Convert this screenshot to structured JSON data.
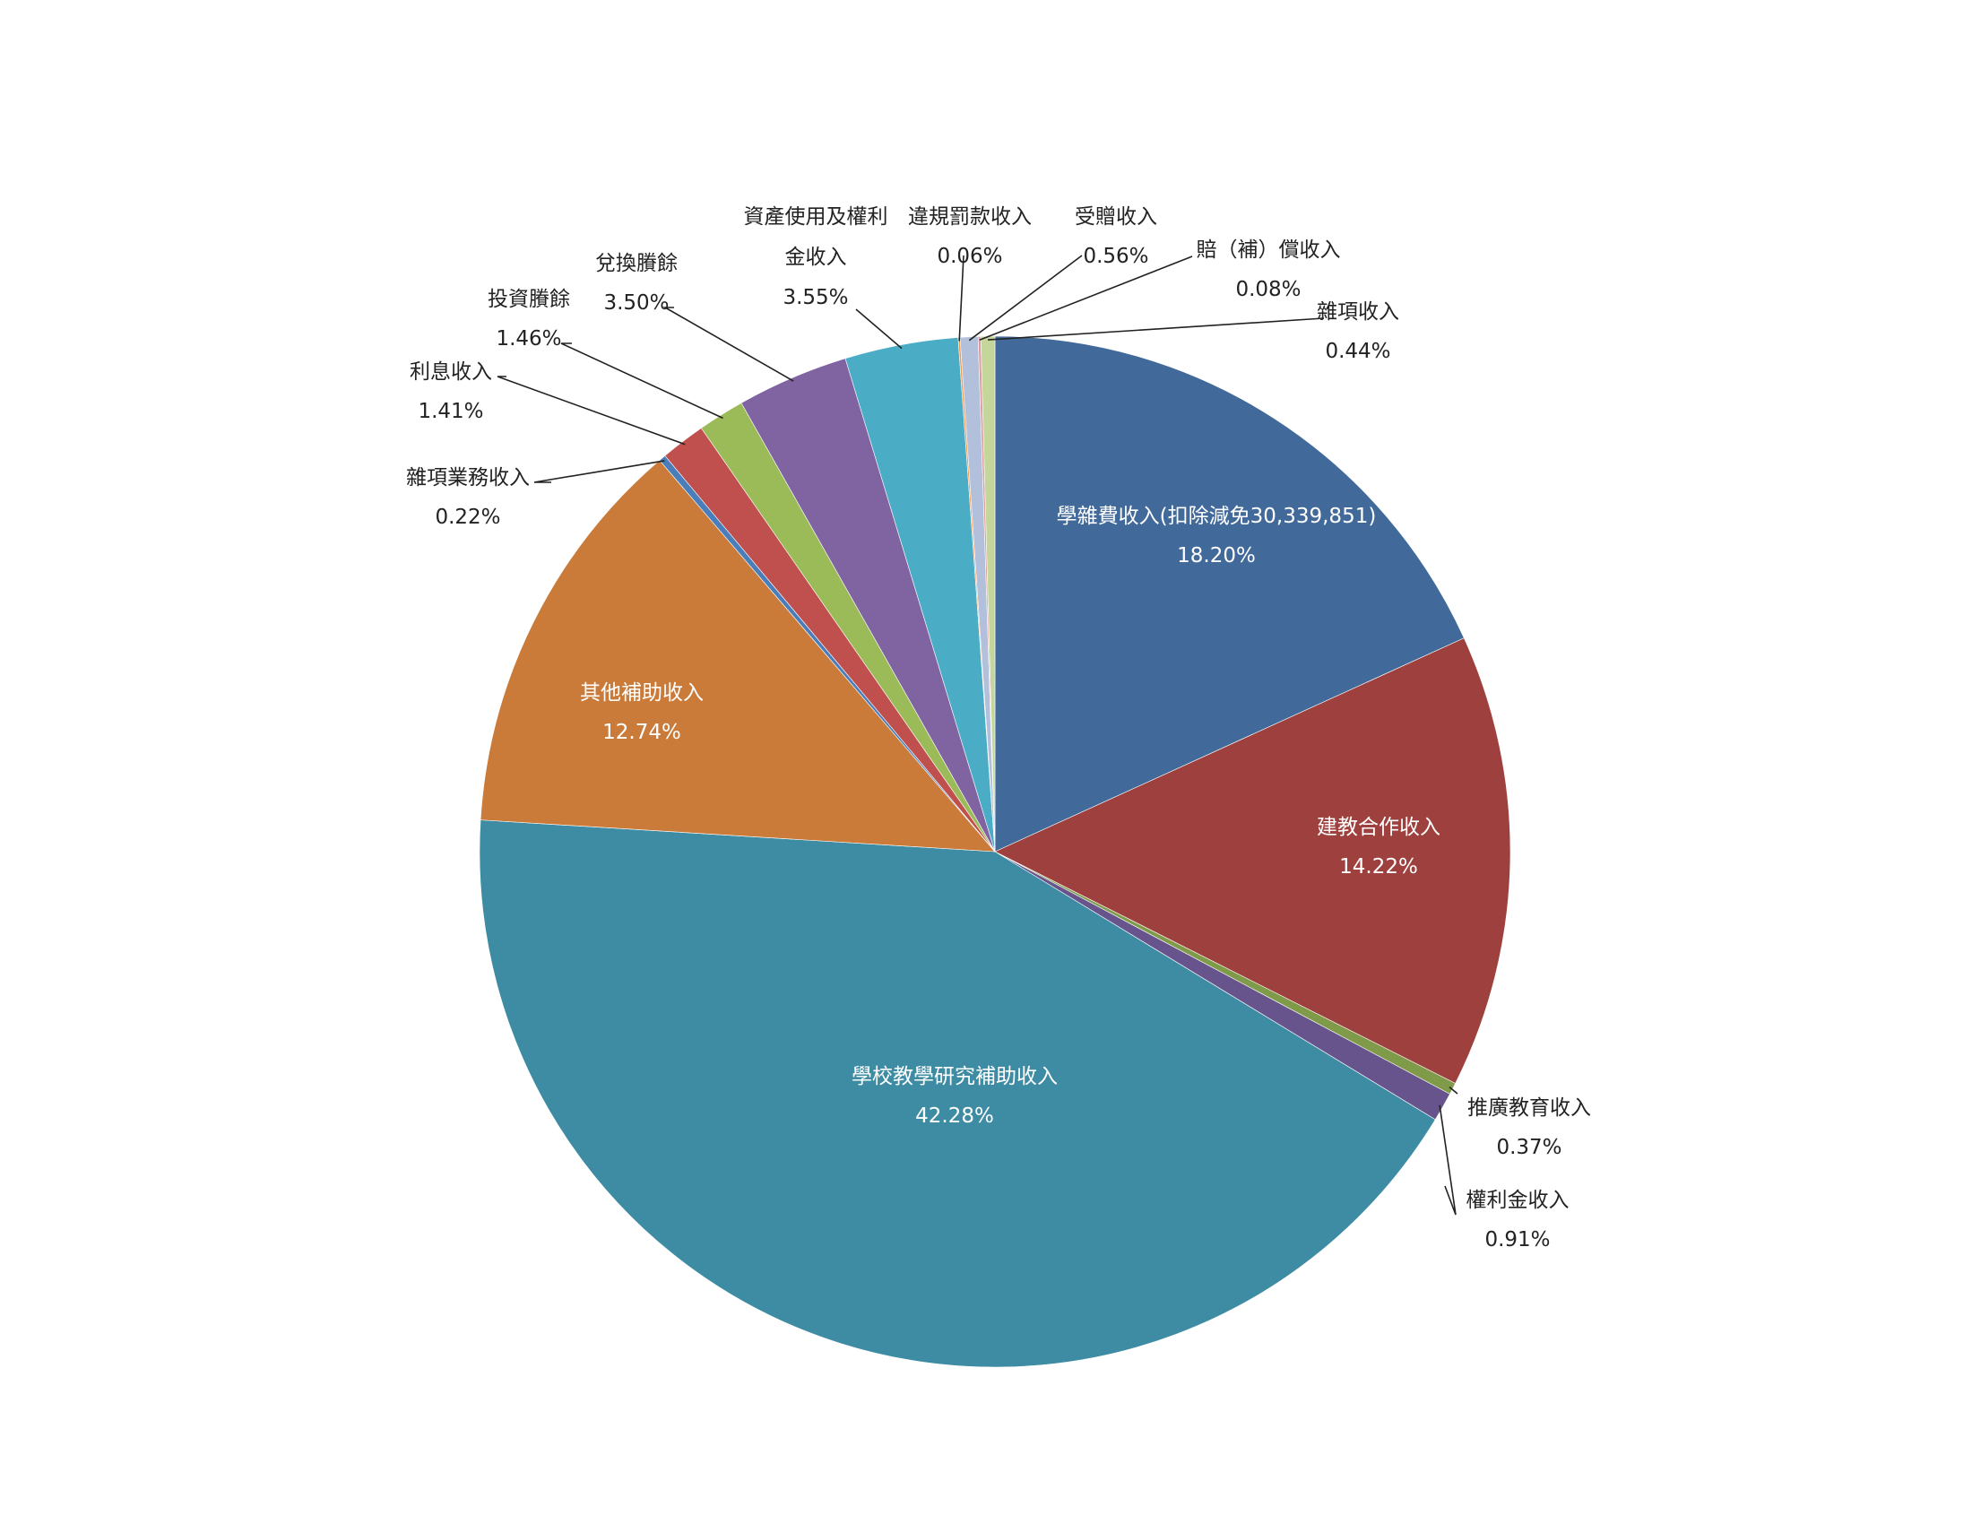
{
  "chart_data": {
    "type": "pie",
    "start_angle_deg": 0,
    "direction": "clockwise",
    "legend": "none",
    "title": "",
    "slices": [
      {
        "label": [
          "學雜費收入(扣除減免30,339,851)"
        ],
        "value": 18.2,
        "value_text": "18.20%",
        "color": "#416a9b",
        "label_inside": true
      },
      {
        "label": [
          "建教合作收入"
        ],
        "value": 14.22,
        "value_text": "14.22%",
        "color": "#9e413e",
        "label_inside": true
      },
      {
        "label": [
          "推廣教育收入"
        ],
        "value": 0.37,
        "value_text": "0.37%",
        "color": "#7f9a48",
        "label_inside": false
      },
      {
        "label": [
          "權利金收入"
        ],
        "value": 0.91,
        "value_text": "0.91%",
        "color": "#68548c",
        "label_inside": false
      },
      {
        "label": [
          "學校教學研究補助收入"
        ],
        "value": 42.28,
        "value_text": "42.28%",
        "color": "#3d8ca3",
        "label_inside": true
      },
      {
        "label": [
          "其他補助收入"
        ],
        "value": 12.74,
        "value_text": "12.74%",
        "color": "#cb7b39",
        "label_inside": true
      },
      {
        "label": [
          "雜項業務收入"
        ],
        "value": 0.22,
        "value_text": "0.22%",
        "color": "#4a7ebb",
        "label_inside": false
      },
      {
        "label": [
          "利息收入"
        ],
        "value": 1.41,
        "value_text": "1.41%",
        "color": "#c0504d",
        "label_inside": false
      },
      {
        "label": [
          "投資賸餘"
        ],
        "value": 1.46,
        "value_text": "1.46%",
        "color": "#9bbb59",
        "label_inside": false
      },
      {
        "label": [
          "兌換賸餘"
        ],
        "value": 3.5,
        "value_text": "3.50%",
        "color": "#8064a2",
        "label_inside": false
      },
      {
        "label": [
          "資產使用及權利",
          "金收入"
        ],
        "value": 3.55,
        "value_text": "3.55%",
        "color": "#4bacc6",
        "label_inside": false
      },
      {
        "label": [
          "違規罰款收入"
        ],
        "value": 0.06,
        "value_text": "0.06%",
        "color": "#f79646",
        "label_inside": false
      },
      {
        "label": [
          "受贈收入"
        ],
        "value": 0.56,
        "value_text": "0.56%",
        "color": "#b3c0dc",
        "label_inside": false
      },
      {
        "label": [
          "賠（補）償收入"
        ],
        "value": 0.08,
        "value_text": "0.08%",
        "color": "#dc9c9b",
        "label_inside": false
      },
      {
        "label": [
          "雜項收入"
        ],
        "value": 0.44,
        "value_text": "0.44%",
        "color": "#c4d69a",
        "label_inside": false
      }
    ]
  }
}
